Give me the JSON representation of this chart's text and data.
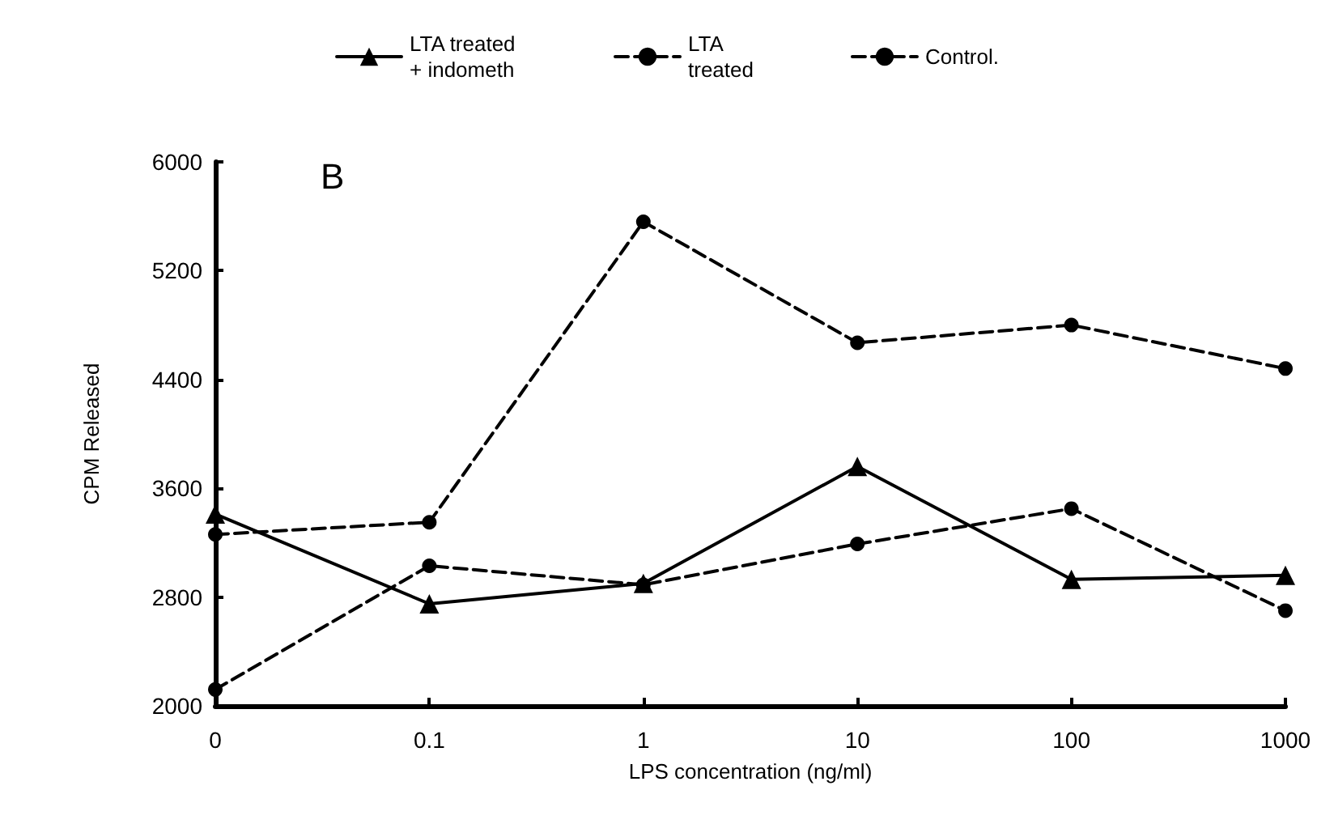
{
  "chart_data": {
    "type": "line",
    "xlabel": "LPS concentration (ng/ml)",
    "ylabel": "CPM Released",
    "categories": [
      "0",
      "0.1",
      "1",
      "10",
      "100",
      "1000"
    ],
    "series": [
      {
        "name": "LTA treated\n+ indometh",
        "color": "#000000",
        "marker": "triangle",
        "line_style": "solid",
        "values": [
          3410,
          2750,
          2900,
          3760,
          2930,
          2960
        ]
      },
      {
        "name": "LTA\ntreated",
        "color": "#000000",
        "marker": "circle",
        "line_style": "dashed",
        "values": [
          2120,
          3030,
          2890,
          3190,
          3450,
          2700
        ]
      },
      {
        "name": "Control.",
        "color": "#000000",
        "marker": "circle",
        "line_style": "dashed",
        "values": [
          3260,
          3350,
          5560,
          4670,
          4800,
          4480
        ]
      }
    ],
    "ylim": [
      2000,
      6000
    ],
    "yticks": [
      2000,
      2800,
      3600,
      4400,
      5200,
      6000
    ],
    "annotations": [
      "B"
    ],
    "grid": false,
    "legend": "top"
  }
}
